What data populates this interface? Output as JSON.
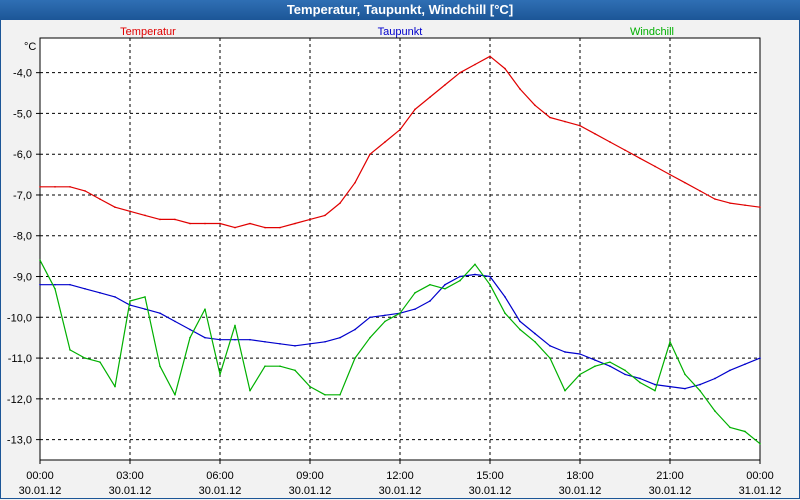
{
  "window": {
    "title": "Temperatur, Taupunkt, Windchill [°C]"
  },
  "chart_data": {
    "type": "line",
    "title": "Temperatur, Taupunkt, Windchill [°C]",
    "ylabel": "°C",
    "ylim": [
      -13.5,
      -3.15
    ],
    "grid": true,
    "legend_placement": "top",
    "xlim": [
      "30.01.12 00:00",
      "31.01.12 00:00"
    ],
    "x_ticks": [
      {
        "time": "00:00",
        "date": "30.01.12"
      },
      {
        "time": "03:00",
        "date": "30.01.12"
      },
      {
        "time": "06:00",
        "date": "30.01.12"
      },
      {
        "time": "09:00",
        "date": "30.01.12"
      },
      {
        "time": "12:00",
        "date": "30.01.12"
      },
      {
        "time": "15:00",
        "date": "30.01.12"
      },
      {
        "time": "18:00",
        "date": "30.01.12"
      },
      {
        "time": "21:00",
        "date": "30.01.12"
      },
      {
        "time": "00:00",
        "date": "31.01.12"
      }
    ],
    "y_ticks": [
      "-4,0",
      "-5,0",
      "-6,0",
      "-7,0",
      "-8,0",
      "-9,0",
      "-10,0",
      "-11,0",
      "-12,0",
      "-13,0"
    ],
    "y_tick_values": [
      -4,
      -5,
      -6,
      -7,
      -8,
      -9,
      -10,
      -11,
      -12,
      -13
    ],
    "x_hours": [
      0,
      0.5,
      1,
      1.5,
      2,
      2.5,
      3,
      3.5,
      4,
      4.5,
      5,
      5.5,
      6,
      6.5,
      7,
      7.5,
      8,
      8.5,
      9,
      9.5,
      10,
      10.5,
      11,
      11.5,
      12,
      12.5,
      13,
      13.5,
      14,
      14.5,
      15,
      15.5,
      16,
      16.5,
      17,
      17.5,
      18,
      18.5,
      19,
      19.5,
      20,
      20.5,
      21,
      21.5,
      22,
      22.5,
      23,
      23.5,
      24
    ],
    "series": [
      {
        "name": "Temperatur",
        "color": "#e00000",
        "values": [
          -6.8,
          -6.8,
          -6.8,
          -6.9,
          -7.1,
          -7.3,
          -7.4,
          -7.5,
          -7.6,
          -7.6,
          -7.7,
          -7.7,
          -7.7,
          -7.8,
          -7.7,
          -7.8,
          -7.8,
          -7.7,
          -7.6,
          -7.5,
          -7.2,
          -6.7,
          -6.0,
          -5.7,
          -5.4,
          -4.9,
          -4.6,
          -4.3,
          -4.0,
          -3.8,
          -3.6,
          -3.9,
          -4.4,
          -4.8,
          -5.1,
          -5.2,
          -5.3,
          -5.5,
          -5.7,
          -5.9,
          -6.1,
          -6.3,
          -6.5,
          -6.7,
          -6.9,
          -7.1,
          -7.2,
          -7.25,
          -7.3
        ]
      },
      {
        "name": "Taupunkt",
        "color": "#0000cc",
        "values": [
          -9.2,
          -9.2,
          -9.2,
          -9.3,
          -9.4,
          -9.5,
          -9.7,
          -9.8,
          -9.9,
          -10.1,
          -10.3,
          -10.5,
          -10.55,
          -10.55,
          -10.55,
          -10.6,
          -10.65,
          -10.7,
          -10.65,
          -10.6,
          -10.5,
          -10.3,
          -10.0,
          -9.95,
          -9.9,
          -9.8,
          -9.6,
          -9.2,
          -9.0,
          -8.95,
          -9.0,
          -9.5,
          -10.1,
          -10.4,
          -10.7,
          -10.85,
          -10.9,
          -11.05,
          -11.2,
          -11.4,
          -11.5,
          -11.65,
          -11.7,
          -11.75,
          -11.65,
          -11.5,
          -11.3,
          -11.15,
          -11.0
        ]
      },
      {
        "name": "Windchill",
        "color": "#00b000",
        "values": [
          -8.6,
          -9.3,
          -10.8,
          -11.0,
          -11.1,
          -11.7,
          -9.6,
          -9.5,
          -11.2,
          -11.9,
          -10.5,
          -9.8,
          -11.4,
          -10.2,
          -11.8,
          -11.2,
          -11.2,
          -11.3,
          -11.7,
          -11.9,
          -11.9,
          -11.0,
          -10.5,
          -10.1,
          -9.9,
          -9.4,
          -9.2,
          -9.3,
          -9.1,
          -8.7,
          -9.2,
          -9.9,
          -10.3,
          -10.6,
          -11.0,
          -11.8,
          -11.4,
          -11.2,
          -11.1,
          -11.3,
          -11.6,
          -11.8,
          -10.6,
          -11.4,
          -11.8,
          -12.3,
          -12.7,
          -12.8,
          -13.1
        ]
      }
    ]
  }
}
